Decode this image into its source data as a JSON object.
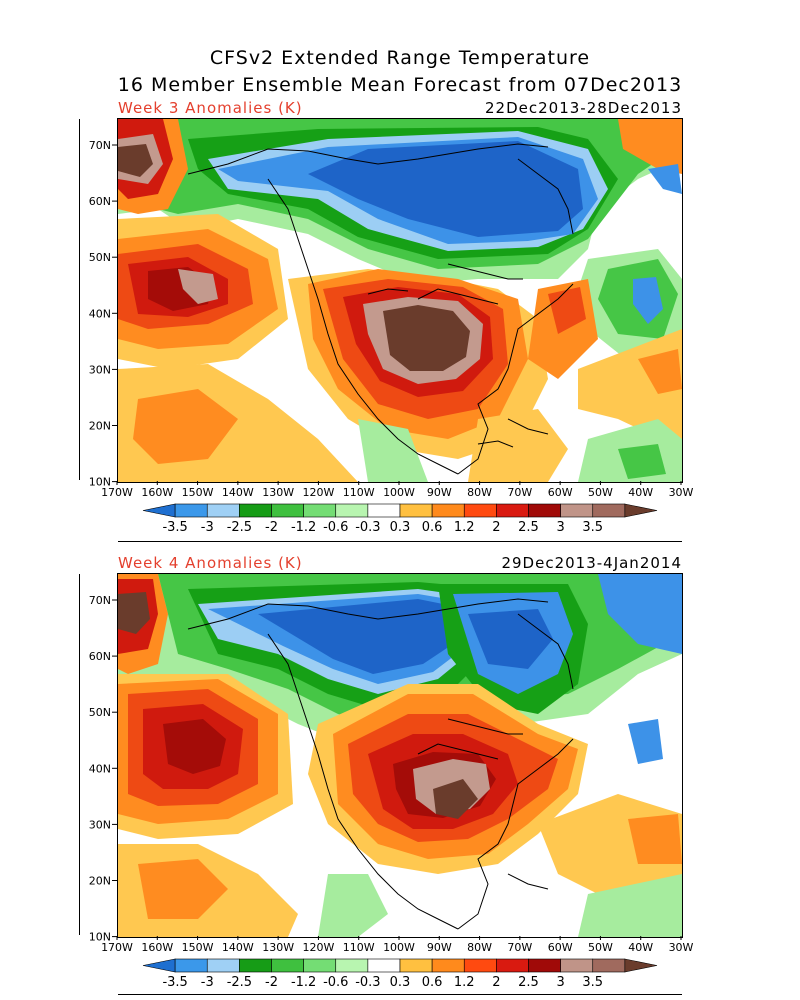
{
  "title_line1": "CFSv2 Extended Range Temperature",
  "title_line2": "16 Member Ensemble Mean Forecast from 07Dec2013",
  "panels": [
    {
      "label": "Week 3 Anomalies (K)",
      "date_range": "22Dec2013-28Dec2013"
    },
    {
      "label": "Week 4 Anomalies (K)",
      "date_range": "29Dec2013-4Jan2014"
    }
  ],
  "lat_ticks": [
    "70N",
    "60N",
    "50N",
    "40N",
    "30N",
    "20N",
    "10N"
  ],
  "lon_ticks": [
    "170W",
    "160W",
    "150W",
    "140W",
    "130W",
    "120W",
    "110W",
    "100W",
    "90W",
    "80W",
    "70W",
    "60W",
    "50W",
    "40W",
    "30W"
  ],
  "colorbar": {
    "labels": [
      "-3.5",
      "-3",
      "-2.5",
      "-2",
      "-1.2",
      "-0.6",
      "-0.3",
      "0.3",
      "0.6",
      "1.2",
      "2",
      "2.5",
      "3",
      "3.5"
    ],
    "colors": [
      "#1e6fd0",
      "#3b98ea",
      "#9fd0f5",
      "#169c16",
      "#3fc03f",
      "#74dd74",
      "#b8f5b0",
      "#ffffff",
      "#ffc040",
      "#ff8a1c",
      "#ff4a10",
      "#d91a10",
      "#a00a08",
      "#c09488",
      "#a06a5e",
      "#6a3c2c"
    ]
  },
  "palette": {
    "dark_blue": "#1e64c8",
    "mid_blue": "#3d92e8",
    "light_blue": "#9ccef4",
    "dark_green": "#16a016",
    "mid_green": "#46c646",
    "light_green": "#a6ec9e",
    "yellow": "#ffc850",
    "orange": "#ff8c20",
    "red_orange": "#ee4a14",
    "red": "#d01a0e",
    "dark_red": "#a40c08",
    "tan": "#c39a8e",
    "brown": "#6a3c2c"
  }
}
